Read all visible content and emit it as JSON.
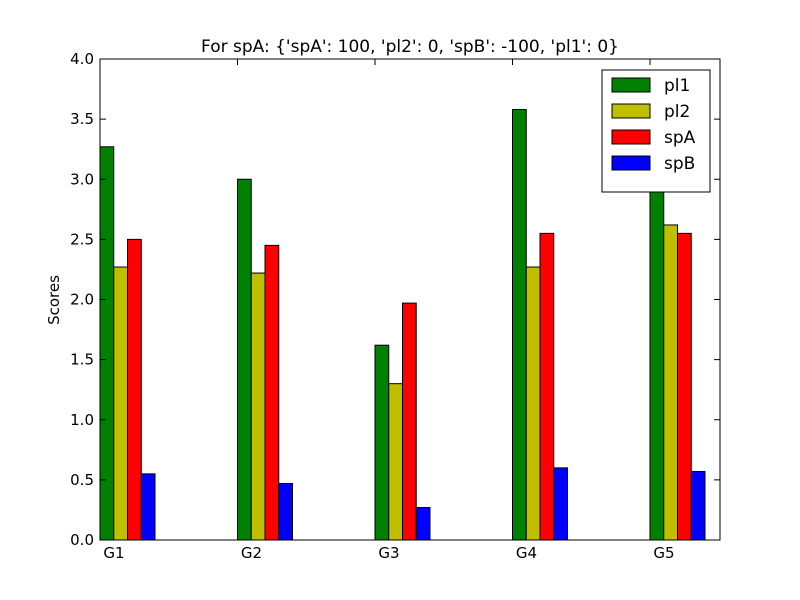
{
  "chart_data": {
    "type": "bar",
    "title": "For spA: {'spA': 100, 'pl2': 0, 'spB': -100, 'pl1': 0}",
    "xlabel": "",
    "ylabel": "Scores",
    "categories": [
      "G1",
      "G2",
      "G3",
      "G4",
      "G5"
    ],
    "ylim": [
      0,
      4.0
    ],
    "yticks": [
      "0.0",
      "0.5",
      "1.0",
      "1.5",
      "2.0",
      "2.5",
      "3.0",
      "3.5",
      "4.0"
    ],
    "grid": false,
    "legend_position": "top-right",
    "series": [
      {
        "name": "pl1",
        "color": "#008000",
        "values": [
          3.27,
          3.0,
          1.62,
          3.58,
          3.0
        ]
      },
      {
        "name": "pl2",
        "color": "#bfbf00",
        "values": [
          2.27,
          2.22,
          1.3,
          2.27,
          2.62
        ]
      },
      {
        "name": "spA",
        "color": "#ff0000",
        "values": [
          2.5,
          2.45,
          1.97,
          2.55,
          2.55
        ]
      },
      {
        "name": "spB",
        "color": "#0000ff",
        "values": [
          0.55,
          0.47,
          0.27,
          0.6,
          0.57
        ]
      }
    ]
  }
}
